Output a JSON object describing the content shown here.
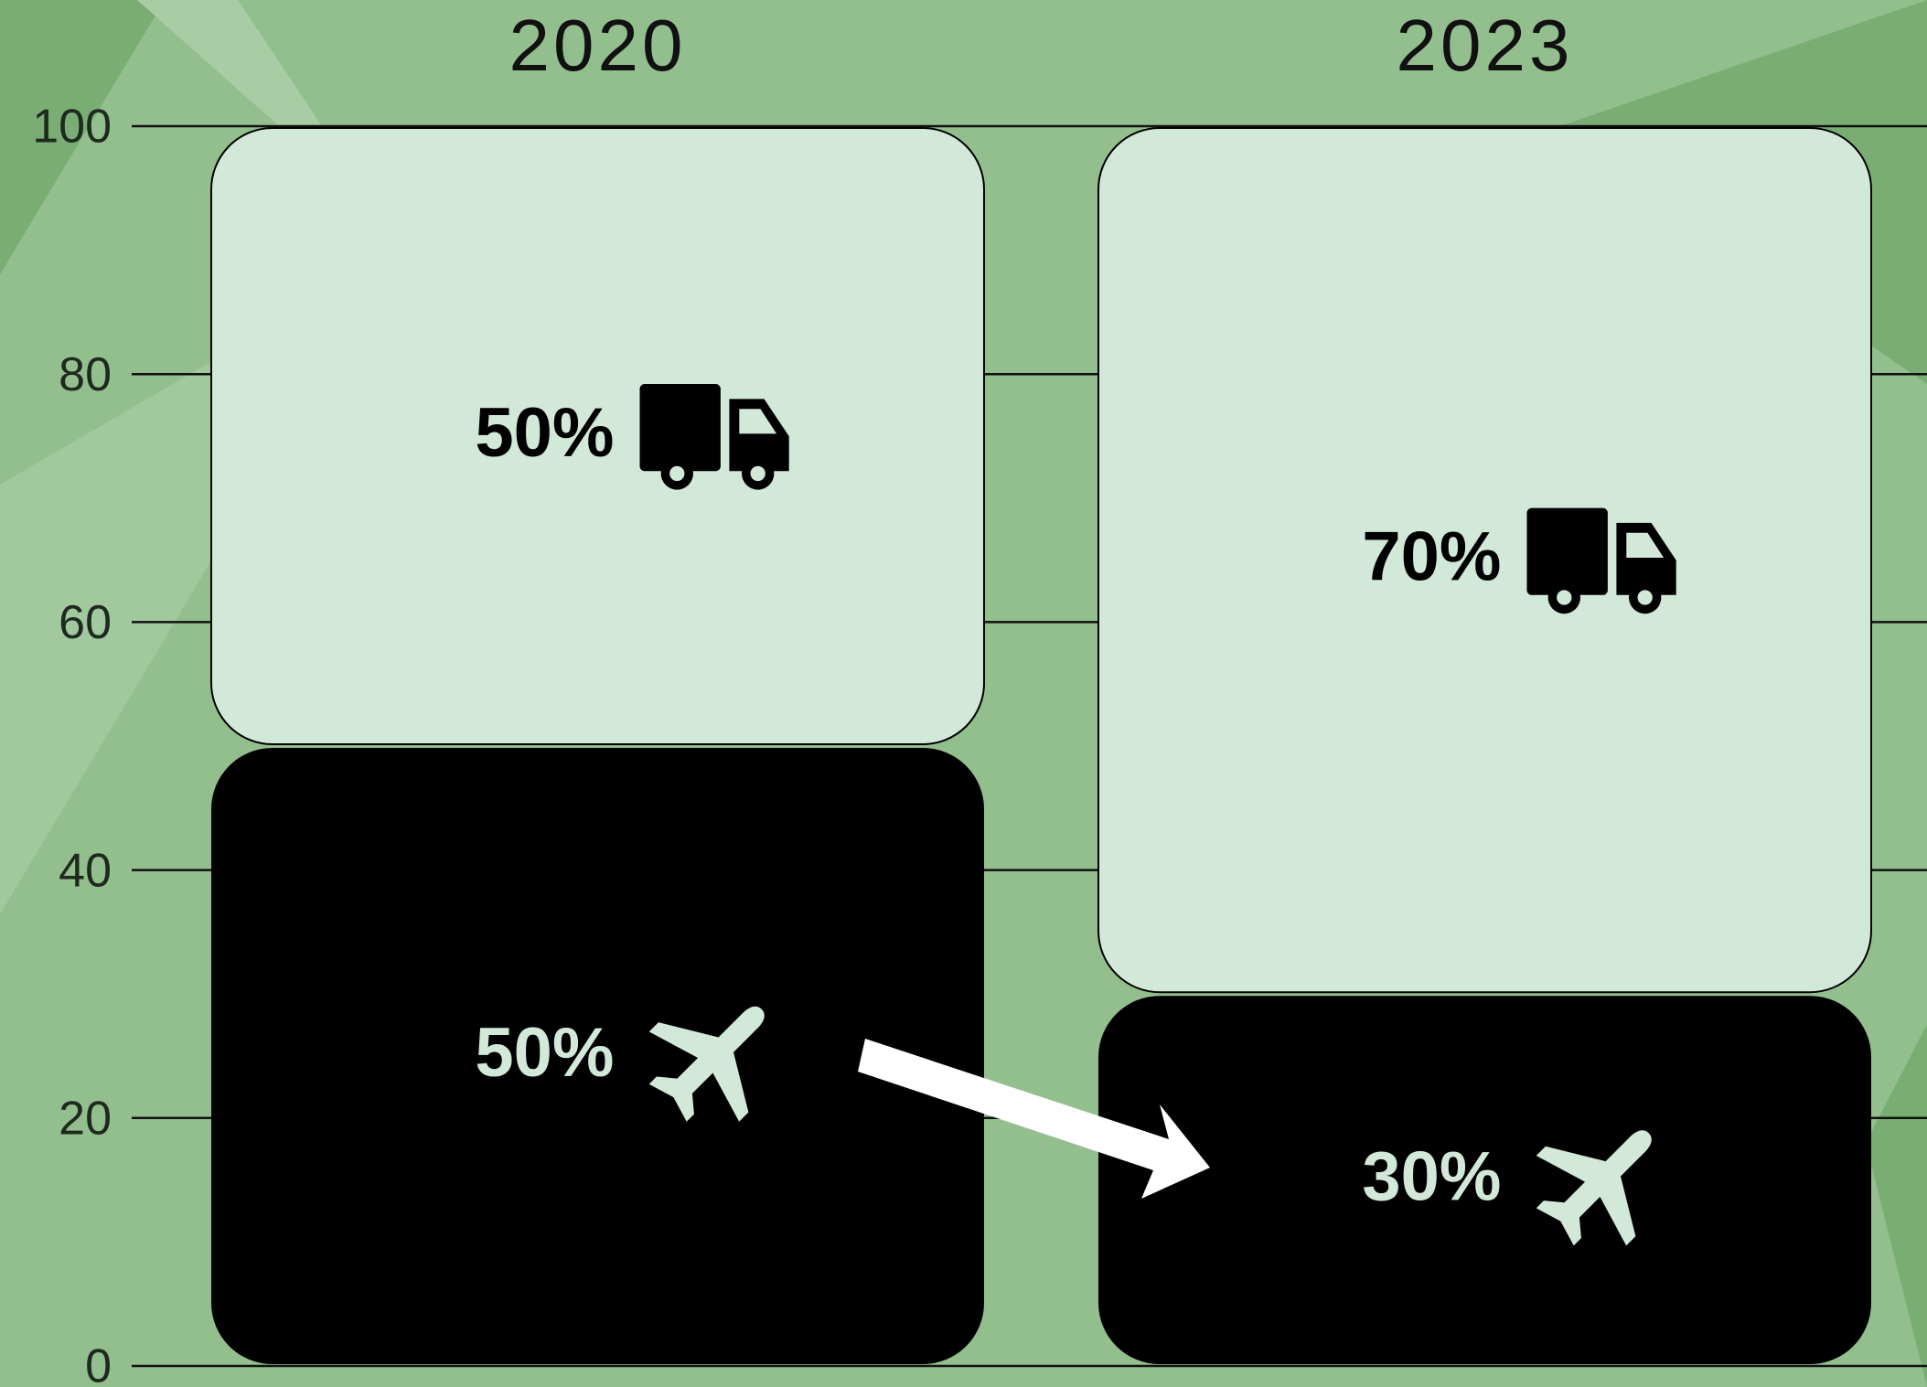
{
  "chart_data": {
    "type": "stacked_bar",
    "categories": [
      "2020",
      "2023"
    ],
    "series": [
      {
        "color": "#000000",
        "values": [
          50,
          30
        ],
        "value_labels": [
          "50%",
          "30%"
        ]
      },
      {
        "color": "#d2e8d8",
        "values": [
          50,
          70
        ],
        "value_labels": [
          "50%",
          "70%"
        ]
      }
    ],
    "ylim": [
      0,
      100
    ],
    "yticks": [
      0,
      20,
      40,
      60,
      80,
      100
    ],
    "grid": true
  }
}
